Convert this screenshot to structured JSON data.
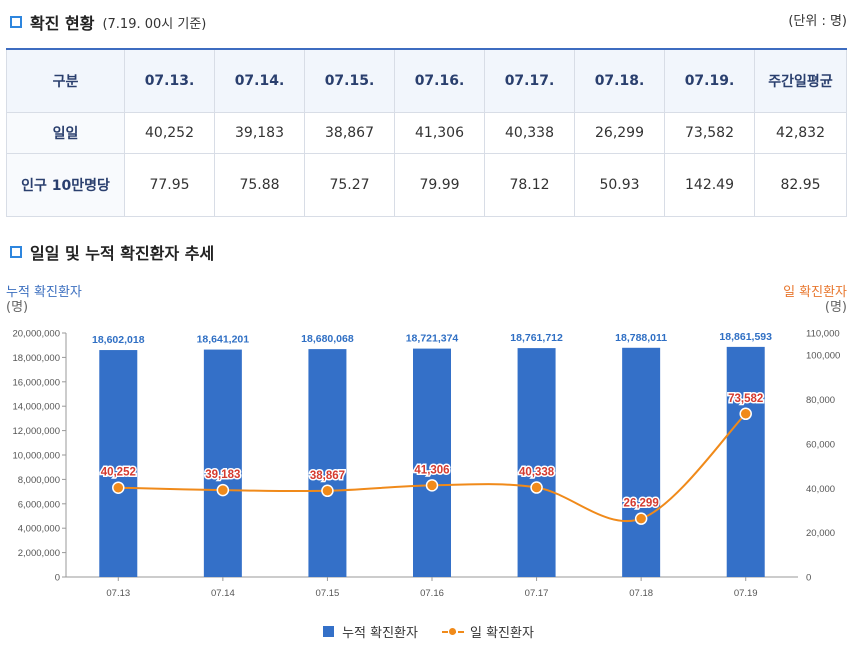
{
  "section1": {
    "title": "확진 현황",
    "subtitle": "(7.19. 00시 기준)",
    "unit": "(단위 : 명)"
  },
  "table": {
    "headers": [
      "구분",
      "07.13.",
      "07.14.",
      "07.15.",
      "07.16.",
      "07.17.",
      "07.18.",
      "07.19.",
      "주간일평균"
    ],
    "rows": [
      {
        "label": "일일",
        "values": [
          "40,252",
          "39,183",
          "38,867",
          "41,306",
          "40,338",
          "26,299",
          "73,582",
          "42,832"
        ]
      },
      {
        "label": "인구 10만명당",
        "values": [
          "77.95",
          "75.88",
          "75.27",
          "79.99",
          "78.12",
          "50.93",
          "142.49",
          "82.95"
        ]
      }
    ]
  },
  "section2": {
    "title": "일일 및 누적 확진환자 추세"
  },
  "axis_titles": {
    "left": "누적 확진환자",
    "left_unit": "(명)",
    "right": "일 확진환자",
    "right_unit": "(명)"
  },
  "colors": {
    "bar": "#3470c8",
    "line": "#f08a1a",
    "bar_label": "#2f6fc4",
    "line_label": "#d43a2f"
  },
  "chart_data": {
    "type": "bar+line",
    "categories": [
      "07.13",
      "07.14",
      "07.15",
      "07.16",
      "07.17",
      "07.18",
      "07.19"
    ],
    "series": [
      {
        "name": "누적 확진환자",
        "type": "bar",
        "axis": "left",
        "values": [
          18602018,
          18641201,
          18680068,
          18721374,
          18761712,
          18788011,
          18861593
        ],
        "labels": [
          "18,602,018",
          "18,641,201",
          "18,680,068",
          "18,721,374",
          "18,761,712",
          "18,788,011",
          "18,861,593"
        ]
      },
      {
        "name": "일 확진환자",
        "type": "line",
        "axis": "right",
        "values": [
          40252,
          39183,
          38867,
          41306,
          40338,
          26299,
          73582
        ],
        "labels": [
          "40,252",
          "39,183",
          "38,867",
          "41,306",
          "40,338",
          "26,299",
          "73,582"
        ]
      }
    ],
    "left_axis": {
      "min": 0,
      "max": 20000000,
      "ticks": [
        0,
        2000000,
        4000000,
        6000000,
        8000000,
        10000000,
        12000000,
        14000000,
        16000000,
        18000000,
        20000000
      ],
      "tick_labels": [
        "0",
        "2,000,000",
        "4,000,000",
        "6,000,000",
        "8,000,000",
        "10,000,000",
        "12,000,000",
        "14,000,000",
        "16,000,000",
        "18,000,000",
        "20,000,000"
      ]
    },
    "right_axis": {
      "min": 0,
      "max": 110000,
      "ticks": [
        0,
        20000,
        40000,
        60000,
        80000,
        100000,
        110000
      ],
      "tick_labels": [
        "0",
        "20,000",
        "40,000",
        "60,000",
        "80,000",
        "100,000",
        "110,000"
      ]
    },
    "legend": [
      "누적 확진환자",
      "일 확진환자"
    ],
    "legend_position": "bottom"
  }
}
